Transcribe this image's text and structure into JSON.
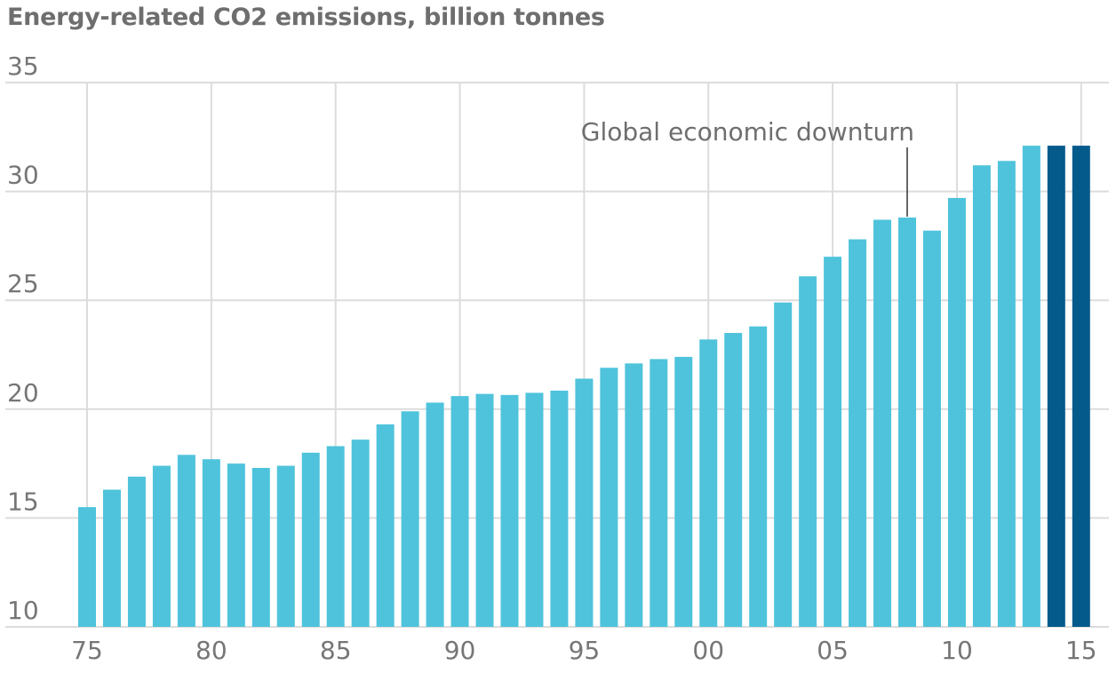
{
  "colors": {
    "actual": "#4fc3dc",
    "estimate": "#055a8c",
    "grid": "#dcdcdc",
    "text": "#767676"
  },
  "chart_data": {
    "type": "bar",
    "title": "Energy-related CO2 emissions, billion tonnes",
    "xlabel": "",
    "ylabel": "",
    "ylim": [
      10,
      35
    ],
    "yticks": [
      10,
      15,
      20,
      25,
      30,
      35
    ],
    "xticks": [
      {
        "year": 1975,
        "label": "75"
      },
      {
        "year": 1980,
        "label": "80"
      },
      {
        "year": 1985,
        "label": "85"
      },
      {
        "year": 1990,
        "label": "90"
      },
      {
        "year": 1995,
        "label": "95"
      },
      {
        "year": 2000,
        "label": "00"
      },
      {
        "year": 2005,
        "label": "05"
      },
      {
        "year": 2010,
        "label": "10"
      },
      {
        "year": 2015,
        "label": "15"
      }
    ],
    "categories": [
      1975,
      1976,
      1977,
      1978,
      1979,
      1980,
      1981,
      1982,
      1983,
      1984,
      1985,
      1986,
      1987,
      1988,
      1989,
      1990,
      1991,
      1992,
      1993,
      1994,
      1995,
      1996,
      1997,
      1998,
      1999,
      2000,
      2001,
      2002,
      2003,
      2004,
      2005,
      2006,
      2007,
      2008,
      2009,
      2010,
      2011,
      2012,
      2013,
      2014,
      2015
    ],
    "values": [
      15.5,
      16.3,
      16.9,
      17.4,
      17.9,
      17.7,
      17.5,
      17.3,
      17.4,
      18.0,
      18.3,
      18.6,
      19.3,
      19.9,
      20.3,
      20.6,
      20.7,
      20.65,
      20.75,
      20.85,
      21.4,
      21.9,
      22.1,
      22.3,
      22.4,
      23.2,
      23.5,
      23.8,
      24.9,
      26.1,
      27.0,
      27.8,
      28.7,
      28.8,
      28.2,
      29.7,
      31.2,
      31.4,
      32.1,
      32.1,
      32.1
    ],
    "highlight_from": 2014,
    "grid": true,
    "legend": "none",
    "annotation": {
      "text": "Global economic downturn",
      "year": 2008
    }
  }
}
